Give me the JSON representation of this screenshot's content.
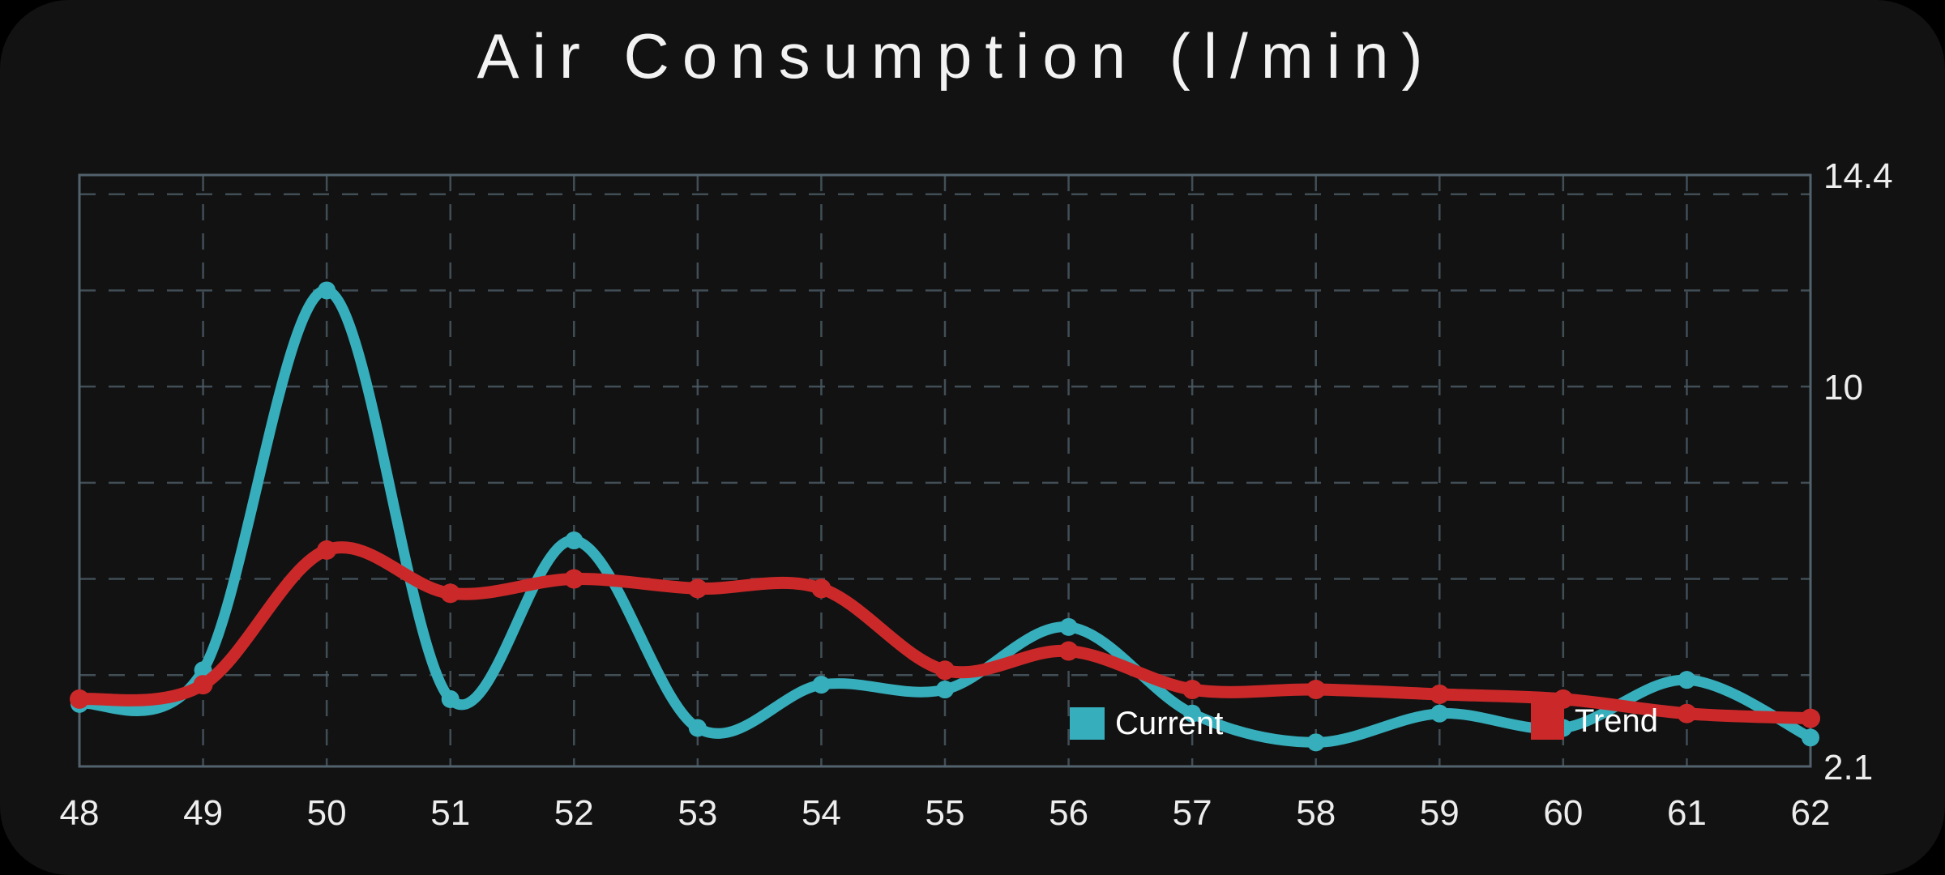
{
  "title": "Air Consumption (l/min)",
  "y_axis": {
    "labels": [
      {
        "value": 14.4,
        "text": "14.4"
      },
      {
        "value": 10,
        "text": "10"
      },
      {
        "value": 2.1,
        "text": "2.1"
      }
    ]
  },
  "legend": {
    "items": [
      {
        "label": "Current",
        "color": "#36aebc"
      },
      {
        "label": "Trend",
        "color": "#cb2929"
      }
    ]
  },
  "chart_data": {
    "type": "line",
    "title": "Air Consumption (l/min)",
    "xlabel": "",
    "ylabel": "",
    "x": [
      48,
      49,
      50,
      51,
      52,
      53,
      54,
      55,
      56,
      57,
      58,
      59,
      60,
      61,
      62
    ],
    "series": [
      {
        "name": "Current",
        "color": "#36aebc",
        "values": [
          3.4,
          4.1,
          12,
          3.5,
          6.8,
          2.9,
          3.8,
          3.7,
          5,
          3.2,
          2.6,
          3.2,
          2.9,
          3.9,
          2.7
        ]
      },
      {
        "name": "Trend",
        "color": "#cb2929",
        "values": [
          3.5,
          3.8,
          6.6,
          5.7,
          6,
          5.8,
          5.8,
          4.1,
          4.5,
          3.7,
          3.7,
          3.6,
          3.5,
          3.2,
          3.1
        ]
      }
    ],
    "xlim": [
      48,
      62
    ],
    "ylim": [
      2.1,
      14.4
    ],
    "y_gridline_values": [
      14,
      12,
      10,
      8,
      6,
      4
    ],
    "grid": true,
    "grid_style": "dashed",
    "grid_color": "#4a5963",
    "curve": "smooth",
    "legend_position": "inside-bottom"
  }
}
